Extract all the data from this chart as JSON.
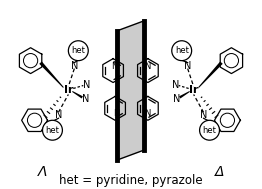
{
  "caption": "het = pyridine, pyrazole",
  "lambda_label": "Λ",
  "delta_label": "Δ",
  "bg_color": "#ffffff",
  "fg_color": "#000000",
  "caption_fontsize": 8.5,
  "fig_width": 2.62,
  "fig_height": 1.89,
  "dpi": 100
}
